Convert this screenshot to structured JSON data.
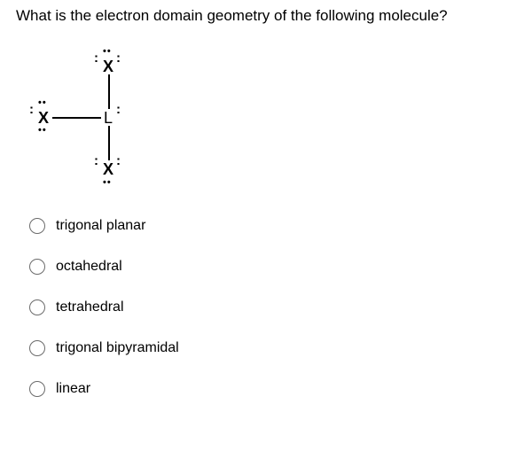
{
  "question": "What is the electron domain geometry of the following molecule?",
  "diagram": {
    "top": {
      "symbol": "X",
      "lone_pairs_top": "••",
      "lone_pairs_left": ":",
      "lone_pairs_right": ":"
    },
    "left": {
      "symbol": "X",
      "lone_pairs_top": "••",
      "lone_pairs_bottom": "••",
      "lone_pairs_left": ":"
    },
    "center": {
      "symbol": "L",
      "lone_pairs_right": ":"
    },
    "bottom": {
      "symbol": "X",
      "lone_pairs_bottom": "••",
      "lone_pairs_left": ":",
      "lone_pairs_right": ":"
    }
  },
  "options": [
    "trigonal planar",
    "octahedral",
    "tetrahedral",
    "trigonal bipyramidal",
    "linear"
  ],
  "styles": {
    "text_color": "#000000",
    "background_color": "#ffffff",
    "radio_border_color": "#6b6b6b"
  }
}
